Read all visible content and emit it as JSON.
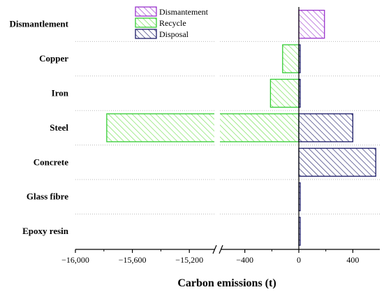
{
  "chart_data": {
    "type": "bar",
    "orientation": "horizontal",
    "categories": [
      "Dismantlement",
      "Copper",
      "Iron",
      "Steel",
      "Concrete",
      "Glass fibre",
      "Epoxy resin"
    ],
    "series": [
      {
        "name": "Dismantement",
        "color": "#9933cc",
        "values": [
          190,
          0,
          0,
          0,
          0,
          0,
          0
        ]
      },
      {
        "name": "Recycle",
        "color": "#33cc33",
        "values": [
          0,
          -120,
          -210,
          -15780,
          0,
          0,
          0
        ]
      },
      {
        "name": "Disposal",
        "color": "#1a1a66",
        "values": [
          0,
          8,
          5,
          400,
          570,
          8,
          8
        ]
      }
    ],
    "xlabel": "Carbon emissions (t)",
    "xticks": [
      -16000,
      -15600,
      -15200,
      -400,
      0,
      400
    ],
    "xtick_labels": [
      "−16,000",
      "−15,600",
      "−15,200",
      "−400",
      "0",
      "400"
    ],
    "xaxis_break": {
      "from": -15000,
      "to": -600
    },
    "xlim": [
      -16000,
      600
    ],
    "grid": "dotted horizontal separators",
    "legend_position": "top-center"
  }
}
